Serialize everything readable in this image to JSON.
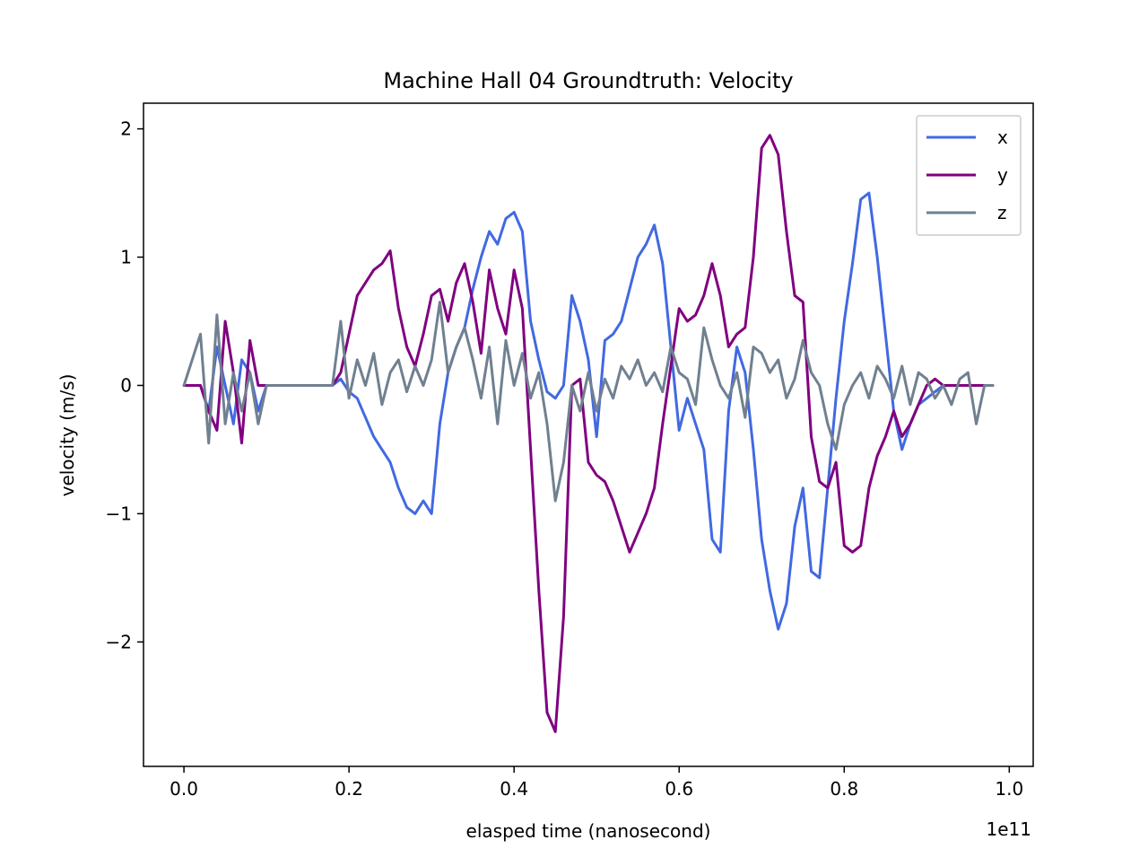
{
  "chart_data": {
    "type": "line",
    "title": "Machine Hall 04 Groundtruth: Velocity",
    "xlabel": "elasped time (nanosecond)",
    "ylabel": "velocity (m/s)",
    "x_offset_text": "1e11",
    "xlim": [
      -0.049,
      1.029
    ],
    "ylim": [
      -2.97,
      2.2
    ],
    "x_ticks": [
      0.0,
      0.2,
      0.4,
      0.6,
      0.8,
      1.0
    ],
    "x_tick_labels": [
      "0.0",
      "0.2",
      "0.4",
      "0.6",
      "0.8",
      "1.0"
    ],
    "y_ticks": [
      2,
      1,
      0,
      -1,
      -2
    ],
    "y_tick_labels": [
      "2",
      "1",
      "0",
      "−1",
      "−2"
    ],
    "grid": false,
    "legend_position": "top-right",
    "x": [
      0.0,
      0.02,
      0.03,
      0.04,
      0.05,
      0.06,
      0.07,
      0.08,
      0.09,
      0.1,
      0.12,
      0.15,
      0.18,
      0.19,
      0.2,
      0.21,
      0.22,
      0.23,
      0.24,
      0.25,
      0.26,
      0.27,
      0.28,
      0.29,
      0.3,
      0.31,
      0.32,
      0.33,
      0.34,
      0.35,
      0.36,
      0.37,
      0.38,
      0.39,
      0.4,
      0.41,
      0.42,
      0.43,
      0.44,
      0.45,
      0.46,
      0.47,
      0.48,
      0.49,
      0.5,
      0.51,
      0.52,
      0.53,
      0.54,
      0.55,
      0.56,
      0.57,
      0.58,
      0.59,
      0.6,
      0.61,
      0.62,
      0.63,
      0.64,
      0.65,
      0.66,
      0.67,
      0.68,
      0.69,
      0.7,
      0.71,
      0.72,
      0.73,
      0.74,
      0.75,
      0.76,
      0.77,
      0.78,
      0.79,
      0.8,
      0.81,
      0.82,
      0.83,
      0.84,
      0.85,
      0.86,
      0.87,
      0.88,
      0.89,
      0.9,
      0.91,
      0.92,
      0.93,
      0.94,
      0.95,
      0.96,
      0.97,
      0.98
    ],
    "series": [
      {
        "name": "x",
        "color": "#4169e1",
        "values": [
          0.0,
          0.0,
          -0.2,
          0.3,
          0.0,
          -0.3,
          0.2,
          0.1,
          -0.2,
          0.0,
          0.0,
          0.0,
          0.0,
          0.05,
          -0.05,
          -0.1,
          -0.25,
          -0.4,
          -0.5,
          -0.6,
          -0.8,
          -0.95,
          -1.0,
          -0.9,
          -1.0,
          -0.3,
          0.1,
          0.3,
          0.45,
          0.75,
          1.0,
          1.2,
          1.1,
          1.3,
          1.35,
          1.2,
          0.5,
          0.2,
          -0.05,
          -0.1,
          0.0,
          0.7,
          0.5,
          0.2,
          -0.4,
          0.35,
          0.4,
          0.5,
          0.75,
          1.0,
          1.1,
          1.25,
          0.95,
          0.3,
          -0.35,
          -0.1,
          -0.3,
          -0.5,
          -1.2,
          -1.3,
          -0.2,
          0.3,
          0.1,
          -0.5,
          -1.2,
          -1.6,
          -1.9,
          -1.7,
          -1.1,
          -0.8,
          -1.45,
          -1.5,
          -0.8,
          -0.1,
          0.5,
          0.95,
          1.45,
          1.5,
          1.0,
          0.4,
          -0.2,
          -0.5,
          -0.3,
          -0.15,
          -0.1,
          -0.05,
          0.0,
          0.0,
          0.0,
          0.0,
          0.0,
          0.0,
          0.0
        ]
      },
      {
        "name": "y",
        "color": "#800080",
        "values": [
          0.0,
          0.0,
          -0.2,
          -0.35,
          0.5,
          0.1,
          -0.45,
          0.35,
          0.0,
          0.0,
          0.0,
          0.0,
          0.0,
          0.1,
          0.4,
          0.7,
          0.8,
          0.9,
          0.95,
          1.05,
          0.6,
          0.3,
          0.15,
          0.4,
          0.7,
          0.75,
          0.5,
          0.8,
          0.95,
          0.65,
          0.25,
          0.9,
          0.6,
          0.4,
          0.9,
          0.6,
          -0.5,
          -1.6,
          -2.55,
          -2.7,
          -1.8,
          0.0,
          0.05,
          -0.6,
          -0.7,
          -0.75,
          -0.9,
          -1.1,
          -1.3,
          -1.15,
          -1.0,
          -0.8,
          -0.3,
          0.15,
          0.6,
          0.5,
          0.55,
          0.7,
          0.95,
          0.7,
          0.3,
          0.4,
          0.45,
          1.0,
          1.85,
          1.95,
          1.8,
          1.2,
          0.7,
          0.65,
          -0.4,
          -0.75,
          -0.8,
          -0.6,
          -1.25,
          -1.3,
          -1.25,
          -0.8,
          -0.55,
          -0.4,
          -0.2,
          -0.4,
          -0.3,
          -0.15,
          0.0,
          0.05,
          0.0,
          0.0,
          0.0,
          0.0,
          0.0,
          0.0,
          0.0
        ]
      },
      {
        "name": "z",
        "color": "#708090",
        "values": [
          0.0,
          0.4,
          -0.45,
          0.55,
          -0.3,
          0.1,
          -0.2,
          0.1,
          -0.3,
          0.0,
          0.0,
          0.0,
          0.0,
          0.5,
          -0.1,
          0.2,
          0.0,
          0.25,
          -0.15,
          0.1,
          0.2,
          -0.05,
          0.15,
          0.0,
          0.2,
          0.65,
          0.1,
          0.3,
          0.45,
          0.2,
          -0.1,
          0.3,
          -0.3,
          0.35,
          0.0,
          0.25,
          -0.1,
          0.1,
          -0.3,
          -0.9,
          -0.6,
          0.0,
          -0.2,
          0.1,
          -0.2,
          0.05,
          -0.1,
          0.15,
          0.05,
          0.2,
          0.0,
          0.1,
          -0.05,
          0.3,
          0.1,
          0.05,
          -0.15,
          0.45,
          0.2,
          0.0,
          -0.1,
          0.1,
          -0.25,
          0.3,
          0.25,
          0.1,
          0.2,
          -0.1,
          0.05,
          0.35,
          0.1,
          0.0,
          -0.3,
          -0.5,
          -0.15,
          0.0,
          0.1,
          -0.1,
          0.15,
          0.05,
          -0.1,
          0.15,
          -0.15,
          0.1,
          0.05,
          -0.1,
          0.0,
          -0.15,
          0.05,
          0.1,
          -0.3,
          0.0,
          0.0
        ]
      }
    ]
  }
}
